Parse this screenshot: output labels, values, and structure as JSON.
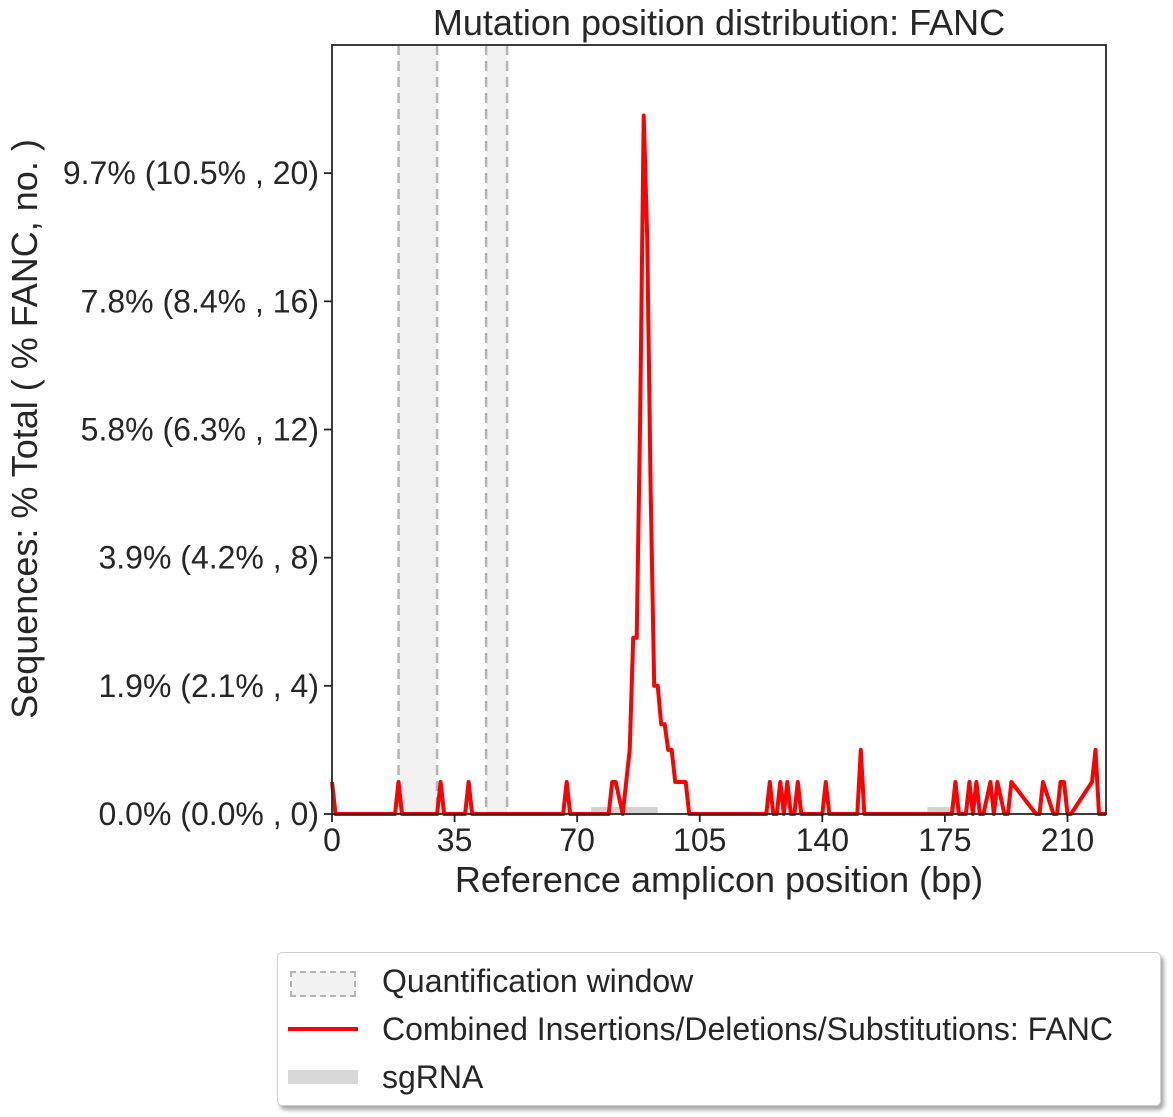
{
  "colors": {
    "line": "#ff0000",
    "quant_window_fill": "#f2f2f2",
    "quant_window_edge": "#b4b4b4",
    "sgrna": "#d3d3d3",
    "axes": "#262626"
  },
  "chart_data": {
    "type": "line",
    "title": "Mutation position distribution: FANC",
    "xlabel": "Reference amplicon position (bp)",
    "ylabel": "Sequences: % Total ( % FANC, no. )",
    "xlim": [
      0,
      221
    ],
    "ylim": [
      0,
      24
    ],
    "x_ticks": [
      0,
      35,
      70,
      105,
      140,
      175,
      210
    ],
    "x_tick_labels": [
      "0",
      "35",
      "70",
      "105",
      "140",
      "175",
      "210"
    ],
    "y_ticks": [
      0,
      4,
      8,
      12,
      16,
      20
    ],
    "y_tick_labels": [
      "0.0% (0.0% , 0)",
      "1.9% (2.1% , 4)",
      "3.9% (4.2% , 8)",
      "5.8% (6.3% , 12)",
      "7.8% (8.4% , 16)",
      "9.7% (10.5% , 20)"
    ],
    "grid": false,
    "legend_position": "below",
    "quantification_windows": [
      [
        19,
        30
      ],
      [
        44,
        50
      ]
    ],
    "sgrna_regions": [
      [
        74,
        93
      ],
      [
        170,
        180
      ]
    ],
    "series": [
      {
        "name": "Combined Insertions/Deletions/Substitutions: FANC",
        "x": [
          0,
          1,
          18,
          19,
          20,
          30,
          31,
          32,
          38,
          39,
          40,
          66,
          67,
          68,
          79,
          80,
          81,
          83,
          84,
          85,
          86,
          87,
          88,
          89,
          90,
          91,
          92,
          93,
          94,
          95,
          96,
          97,
          98,
          101,
          102,
          103,
          124,
          125,
          126,
          127,
          128,
          129,
          130,
          131,
          132,
          133,
          134,
          135,
          140,
          141,
          142,
          150,
          151,
          152,
          177,
          178,
          179,
          181,
          182,
          183,
          184,
          185,
          186,
          188,
          189,
          190,
          192,
          193,
          194,
          201,
          202,
          203,
          206,
          207,
          208,
          209,
          210,
          211,
          217,
          218,
          219,
          221
        ],
        "y": [
          1,
          0,
          0,
          1,
          0,
          0,
          1,
          0,
          0,
          1,
          0,
          0,
          1,
          0,
          0,
          1,
          1,
          0,
          1,
          2,
          5.5,
          5.5,
          12.5,
          21.8,
          18,
          10,
          4,
          4,
          2.8,
          2.8,
          2,
          2,
          1,
          1,
          0,
          0,
          0,
          1,
          0,
          0,
          1,
          0,
          1,
          0,
          0,
          1,
          0,
          0,
          0,
          1,
          0,
          0,
          2,
          0,
          0,
          1,
          0,
          0,
          1,
          0,
          1,
          0,
          0,
          1,
          0,
          1,
          0,
          0,
          1,
          0,
          0,
          1,
          0,
          0,
          1,
          1,
          0,
          0,
          1,
          2,
          0,
          0
        ]
      }
    ]
  },
  "legend": {
    "items": [
      {
        "label": "Quantification window"
      },
      {
        "label": "Combined Insertions/Deletions/Substitutions: FANC"
      },
      {
        "label": "sgRNA"
      }
    ]
  }
}
